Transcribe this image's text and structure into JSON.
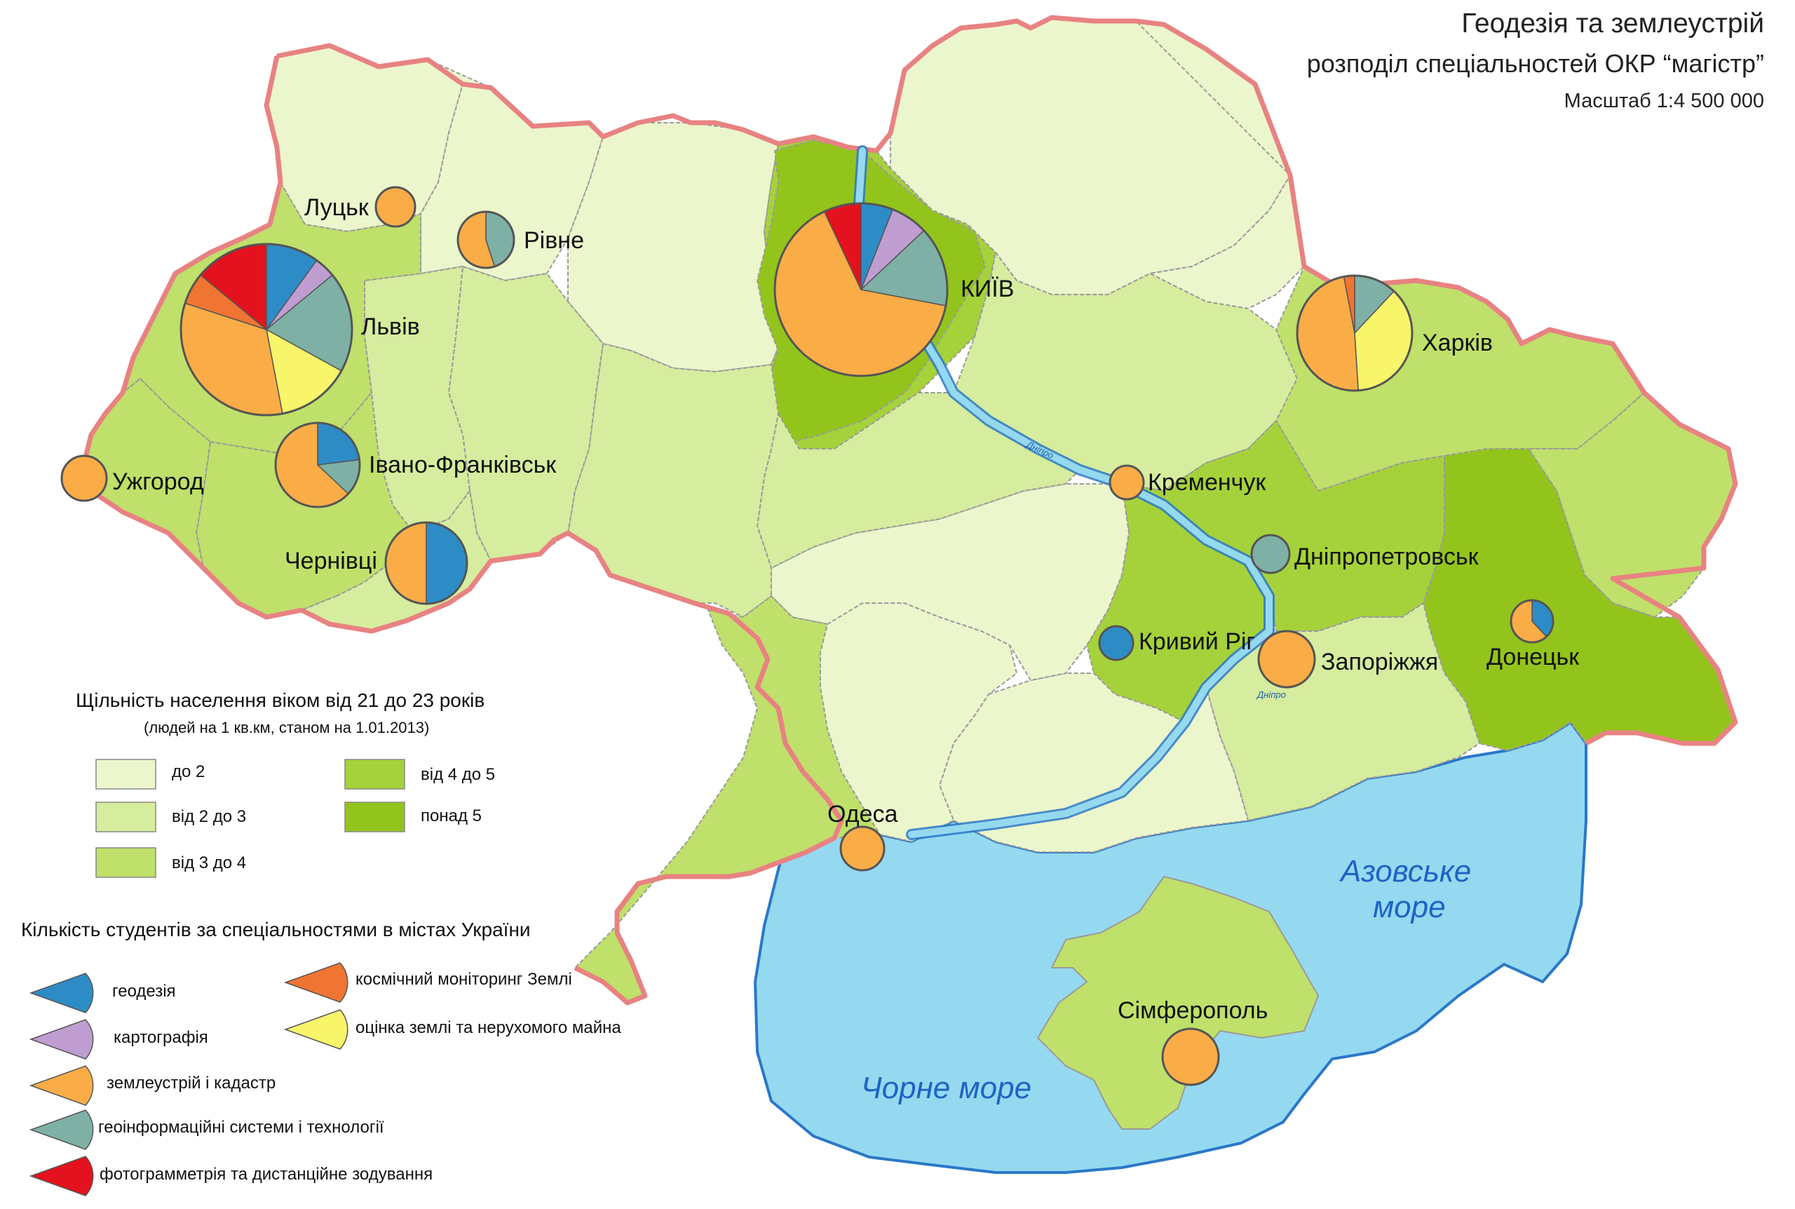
{
  "header": {
    "title": "Геодезія та землеустрій",
    "subtitle": "розподіл спеціальностей ОКР “магістр”",
    "scale": "Масштаб 1:4 500 000"
  },
  "seas": {
    "black": "Чорне море",
    "azov_line1": "Азовське",
    "azov_line2": "море"
  },
  "river": {
    "name": "Дніпро"
  },
  "colors": {
    "water": "#95d9f0",
    "water_edge": "#2a78c8",
    "border": "#e88282",
    "region_edge": "#9a9a9a"
  },
  "density_legend": {
    "title": "Щільність населення віком від 21 до 23 років",
    "subtitle": "(людей на 1 кв.км, станом на 1.01.2013)",
    "classes": [
      {
        "label": "до 2",
        "color": "#ecf6cc"
      },
      {
        "label": "від 2 до 3",
        "color": "#d6ec9e"
      },
      {
        "label": "від 3 до 4",
        "color": "#bfe06a"
      },
      {
        "label": "від 4 до 5",
        "color": "#a5d23a"
      },
      {
        "label": "понад 5",
        "color": "#93c41c"
      }
    ]
  },
  "specialty_legend": {
    "title": "Кількість студентів за спеціальностями в містах України",
    "items": [
      {
        "key": "geodesy",
        "label": "геодезія",
        "color": "#2d8cc6"
      },
      {
        "key": "cartography",
        "label": "картографія",
        "color": "#bf9dd1"
      },
      {
        "key": "land",
        "label": "землеустрій і кадастр",
        "color": "#faac47"
      },
      {
        "key": "gis",
        "label": "геоінформаційні системи і технології",
        "color": "#7eb0a6"
      },
      {
        "key": "photo",
        "label": "фотограмметрія та дистанційне зодування",
        "color": "#e4121e"
      },
      {
        "key": "space",
        "label": "космічний моніторинг Землі",
        "color": "#f07432"
      },
      {
        "key": "valuation",
        "label": "оцінка землі та нерухомого майна",
        "color": "#f8f56a"
      }
    ]
  },
  "cities": [
    {
      "name": "Львів",
      "slices": [
        {
          "key": "geodesy",
          "share": 0.1
        },
        {
          "key": "cartography",
          "share": 0.04
        },
        {
          "key": "gis",
          "share": 0.19
        },
        {
          "key": "valuation",
          "share": 0.14
        },
        {
          "key": "land",
          "share": 0.33
        },
        {
          "key": "space",
          "share": 0.06
        },
        {
          "key": "photo",
          "share": 0.14
        }
      ]
    },
    {
      "name": "КИЇВ",
      "slices": [
        {
          "key": "geodesy",
          "share": 0.06
        },
        {
          "key": "cartography",
          "share": 0.07
        },
        {
          "key": "gis",
          "share": 0.15
        },
        {
          "key": "land",
          "share": 0.65
        },
        {
          "key": "photo",
          "share": 0.07
        }
      ]
    },
    {
      "name": "Харків",
      "slices": [
        {
          "key": "gis",
          "share": 0.12
        },
        {
          "key": "valuation",
          "share": 0.37
        },
        {
          "key": "land",
          "share": 0.48
        },
        {
          "key": "space",
          "share": 0.03
        }
      ]
    },
    {
      "name": "Івано-Франківськ",
      "slices": [
        {
          "key": "geodesy",
          "share": 0.23
        },
        {
          "key": "gis",
          "share": 0.14
        },
        {
          "key": "land",
          "share": 0.63
        }
      ]
    },
    {
      "name": "Чернівці",
      "slices": [
        {
          "key": "geodesy",
          "share": 0.5
        },
        {
          "key": "land",
          "share": 0.5
        }
      ]
    },
    {
      "name": "Рівне",
      "slices": [
        {
          "key": "gis",
          "share": 0.45
        },
        {
          "key": "land",
          "share": 0.55
        }
      ]
    },
    {
      "name": "Донецьк",
      "slices": [
        {
          "key": "geodesy",
          "share": 0.38
        },
        {
          "key": "land",
          "share": 0.62
        }
      ]
    },
    {
      "name": "Луцьк",
      "slices": [
        {
          "key": "land",
          "share": 1.0
        }
      ]
    },
    {
      "name": "Ужгород",
      "slices": [
        {
          "key": "land",
          "share": 1.0
        }
      ]
    },
    {
      "name": "Кременчук",
      "slices": [
        {
          "key": "land",
          "share": 1.0
        }
      ]
    },
    {
      "name": "Дніпропетровськ",
      "slices": [
        {
          "key": "gis",
          "share": 1.0
        }
      ]
    },
    {
      "name": "Кривий Ріг",
      "slices": [
        {
          "key": "geodesy",
          "share": 1.0
        }
      ]
    },
    {
      "name": "Запоріжжя",
      "slices": [
        {
          "key": "land",
          "share": 1.0
        }
      ]
    },
    {
      "name": "Одеса",
      "slices": [
        {
          "key": "land",
          "share": 1.0
        }
      ]
    },
    {
      "name": "Сімферополь",
      "slices": [
        {
          "key": "land",
          "share": 1.0
        }
      ]
    }
  ]
}
